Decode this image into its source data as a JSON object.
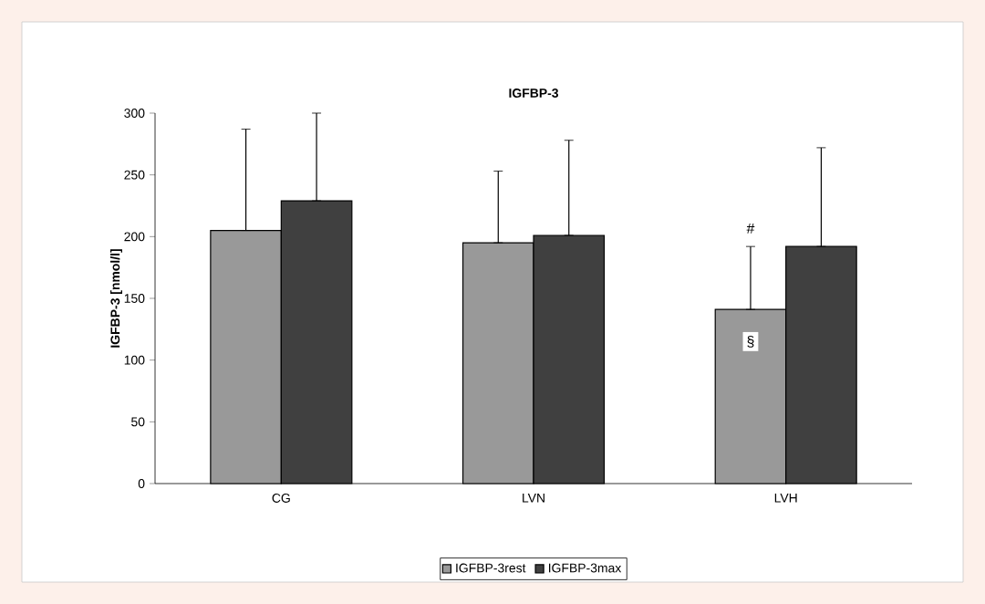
{
  "chart_data": {
    "type": "bar",
    "title": "IGFBP-3",
    "ylabel": "IGFBP-3 [nmol/l]",
    "categories": [
      "CG",
      "LVN",
      "LVH"
    ],
    "series": [
      {
        "name": "IGFBP-3rest",
        "color": "#999999",
        "values": [
          205,
          195,
          141
        ],
        "errors": [
          [
            205,
            287
          ],
          [
            195,
            253
          ],
          [
            141,
            192
          ]
        ]
      },
      {
        "name": "IGFBP-3max",
        "color": "#404040",
        "values": [
          229,
          201,
          192
        ],
        "errors": [
          [
            229,
            300
          ],
          [
            201,
            278
          ],
          [
            192,
            272
          ]
        ]
      }
    ],
    "ylim": [
      0,
      300
    ],
    "yticks": [
      0,
      50,
      100,
      150,
      200,
      250,
      300
    ],
    "legend": "bottom",
    "annotations": [
      {
        "text": "#",
        "x": "LVH",
        "y": 192
      },
      {
        "text": "§",
        "x": "LVH",
        "y": 115
      }
    ]
  }
}
